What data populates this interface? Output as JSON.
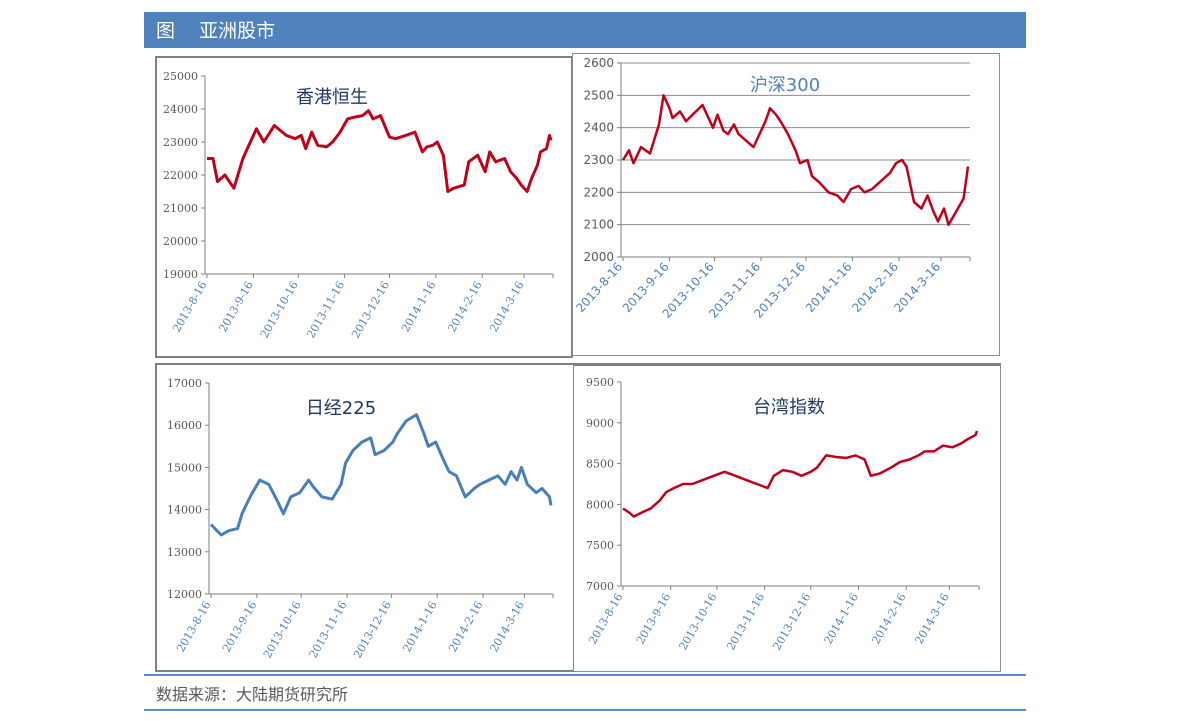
{
  "header": {
    "title": "图    亚洲股市",
    "bg_color": "#4f81bd"
  },
  "footer": {
    "source": "数据来源：大陆期货研究所"
  },
  "chart_data": [
    {
      "id": "hsi",
      "type": "line",
      "title": "香港恒生",
      "line_color": "#c0001a",
      "title_color": "#1f3864",
      "ylim": [
        19000,
        25000
      ],
      "yticks": [
        "19000",
        "20000",
        "21000",
        "22000",
        "23000",
        "24000",
        "25000"
      ],
      "xticks": [
        "2013-8-16",
        "2013-9-16",
        "2013-10-16",
        "2013-11-16",
        "2013-12-16",
        "2014-1-16",
        "2014-2-16",
        "2014-3-16"
      ],
      "x": [
        "2013-8-16",
        "2013-8-20",
        "2013-8-23",
        "2013-8-28",
        "2013-9-3",
        "2013-9-9",
        "2013-9-13",
        "2013-9-18",
        "2013-9-23",
        "2013-9-30",
        "2013-10-8",
        "2013-10-14",
        "2013-10-18",
        "2013-10-21",
        "2013-10-25",
        "2013-10-29",
        "2013-11-4",
        "2013-11-8",
        "2013-11-13",
        "2013-11-18",
        "2013-11-22",
        "2013-11-28",
        "2013-12-2",
        "2013-12-5",
        "2013-12-10",
        "2013-12-16",
        "2013-12-20",
        "2013-12-27",
        "2014-1-2",
        "2014-1-7",
        "2014-1-10",
        "2014-1-14",
        "2014-1-17",
        "2014-1-21",
        "2014-1-24",
        "2014-1-28",
        "2014-2-4",
        "2014-2-7",
        "2014-2-13",
        "2014-2-18",
        "2014-2-21",
        "2014-2-25",
        "2014-3-3",
        "2014-3-7",
        "2014-3-11",
        "2014-3-14",
        "2014-3-18",
        "2014-3-21",
        "2014-3-25",
        "2014-3-27",
        "2014-3-31",
        "2014-4-2",
        "2014-4-3"
      ],
      "values": [
        22500,
        22500,
        21800,
        22000,
        21600,
        22500,
        22900,
        23400,
        23000,
        23500,
        23200,
        23100,
        23200,
        22800,
        23300,
        22900,
        22850,
        23000,
        23300,
        23700,
        23750,
        23800,
        23950,
        23700,
        23800,
        23150,
        23100,
        23200,
        23300,
        22700,
        22850,
        22900,
        23000,
        22600,
        21500,
        21600,
        21700,
        22400,
        22600,
        22100,
        22700,
        22400,
        22500,
        22100,
        21900,
        21700,
        21500,
        21900,
        22300,
        22700,
        22800,
        23200,
        23050
      ]
    },
    {
      "id": "csi300",
      "type": "line",
      "title": "沪深300",
      "line_color": "#c0001a",
      "title_color": "#4f81bd",
      "ylim": [
        2000,
        2600
      ],
      "yticks": [
        "2000",
        "2100",
        "2200",
        "2300",
        "2400",
        "2500",
        "2600"
      ],
      "xticks": [
        "2013-8-16",
        "2013-9-16",
        "2013-10-16",
        "2013-11-16",
        "2013-12-16",
        "2014-1-16",
        "2014-2-16",
        "2014-3-16"
      ],
      "x": [
        "2013-8-16",
        "2013-8-20",
        "2013-8-23",
        "2013-8-28",
        "2013-9-3",
        "2013-9-9",
        "2013-9-12",
        "2013-9-16",
        "2013-9-18",
        "2013-9-23",
        "2013-9-27",
        "2013-10-8",
        "2013-10-11",
        "2013-10-15",
        "2013-10-18",
        "2013-10-22",
        "2013-10-25",
        "2013-10-29",
        "2013-11-1",
        "2013-11-6",
        "2013-11-11",
        "2013-11-15",
        "2013-11-19",
        "2013-11-22",
        "2013-11-26",
        "2013-11-29",
        "2013-12-4",
        "2013-12-9",
        "2013-12-12",
        "2013-12-17",
        "2013-12-20",
        "2013-12-25",
        "2013-12-31",
        "2014-1-6",
        "2014-1-10",
        "2014-1-15",
        "2014-1-20",
        "2014-1-24",
        "2014-1-29",
        "2014-2-10",
        "2014-2-14",
        "2014-2-18",
        "2014-2-21",
        "2014-2-26",
        "2014-3-3",
        "2014-3-7",
        "2014-3-11",
        "2014-3-14",
        "2014-3-18",
        "2014-3-21",
        "2014-3-26",
        "2014-3-31",
        "2014-4-3"
      ],
      "values": [
        2300,
        2330,
        2290,
        2340,
        2320,
        2410,
        2500,
        2460,
        2430,
        2450,
        2420,
        2470,
        2440,
        2400,
        2440,
        2390,
        2380,
        2410,
        2380,
        2360,
        2340,
        2380,
        2420,
        2460,
        2440,
        2420,
        2380,
        2330,
        2290,
        2300,
        2250,
        2230,
        2200,
        2190,
        2170,
        2210,
        2220,
        2200,
        2210,
        2260,
        2290,
        2300,
        2280,
        2170,
        2150,
        2190,
        2140,
        2110,
        2150,
        2100,
        2140,
        2180,
        2280
      ]
    },
    {
      "id": "nikkei",
      "type": "line",
      "title": "日经225",
      "line_color": "#4a7ebb",
      "title_color": "#1f3864",
      "ylim": [
        12000,
        17000
      ],
      "yticks": [
        "12000",
        "13000",
        "14000",
        "15000",
        "16000",
        "17000"
      ],
      "xticks": [
        "2013-8-16",
        "2013-9-16",
        "2013-10-16",
        "2013-11-16",
        "2013-12-16",
        "2014-1-16",
        "2014-2-16",
        "2014-3-16"
      ],
      "x": [
        "2013-8-16",
        "2013-8-20",
        "2013-8-23",
        "2013-8-28",
        "2013-9-3",
        "2013-9-6",
        "2013-9-10",
        "2013-9-13",
        "2013-9-18",
        "2013-9-24",
        "2013-9-30",
        "2013-10-4",
        "2013-10-9",
        "2013-10-15",
        "2013-10-21",
        "2013-10-24",
        "2013-10-30",
        "2013-11-6",
        "2013-11-12",
        "2013-11-15",
        "2013-11-20",
        "2013-11-26",
        "2013-12-2",
        "2013-12-5",
        "2013-12-11",
        "2013-12-17",
        "2013-12-20",
        "2013-12-26",
        "2014-1-2",
        "2014-1-7",
        "2014-1-10",
        "2014-1-15",
        "2014-1-20",
        "2014-1-24",
        "2014-1-29",
        "2014-2-4",
        "2014-2-10",
        "2014-2-14",
        "2014-2-20",
        "2014-2-26",
        "2014-3-3",
        "2014-3-7",
        "2014-3-11",
        "2014-3-14",
        "2014-3-18",
        "2014-3-24",
        "2014-3-28",
        "2014-4-2",
        "2014-4-3"
      ],
      "values": [
        13650,
        13500,
        13400,
        13500,
        13550,
        13900,
        14200,
        14400,
        14700,
        14600,
        14200,
        13900,
        14300,
        14400,
        14700,
        14550,
        14300,
        14250,
        14600,
        15100,
        15400,
        15600,
        15700,
        15300,
        15400,
        15600,
        15800,
        16100,
        16250,
        15800,
        15500,
        15600,
        15200,
        14900,
        14800,
        14300,
        14500,
        14600,
        14700,
        14800,
        14600,
        14900,
        14700,
        15000,
        14600,
        14400,
        14500,
        14300,
        14100
      ]
    },
    {
      "id": "taiex",
      "type": "line",
      "title": "台湾指数",
      "line_color": "#c0001a",
      "title_color": "#1f3864",
      "ylim": [
        7000,
        9500
      ],
      "yticks": [
        "7000",
        "7500",
        "8000",
        "8500",
        "9000",
        "9500"
      ],
      "xticks": [
        "2013-8-16",
        "2013-9-16",
        "2013-10-16",
        "2013-11-16",
        "2013-12-16",
        "2014-1-16",
        "2014-2-16",
        "2014-3-16"
      ],
      "x": [
        "2013-8-16",
        "2013-8-20",
        "2013-8-23",
        "2013-8-28",
        "2013-9-3",
        "2013-9-9",
        "2013-9-13",
        "2013-9-18",
        "2013-9-24",
        "2013-9-30",
        "2013-10-7",
        "2013-10-14",
        "2013-10-21",
        "2013-10-28",
        "2013-11-4",
        "2013-11-11",
        "2013-11-18",
        "2013-11-22",
        "2013-11-28",
        "2013-12-4",
        "2013-12-10",
        "2013-12-16",
        "2013-12-20",
        "2013-12-26",
        "2014-1-2",
        "2014-1-8",
        "2014-1-14",
        "2014-1-20",
        "2014-1-24",
        "2014-1-30",
        "2014-2-6",
        "2014-2-12",
        "2014-2-18",
        "2014-2-24",
        "2014-2-28",
        "2014-3-6",
        "2014-3-12",
        "2014-3-18",
        "2014-3-24",
        "2014-3-28",
        "2014-4-2",
        "2014-4-3"
      ],
      "values": [
        7950,
        7900,
        7850,
        7900,
        7950,
        8050,
        8150,
        8200,
        8250,
        8250,
        8300,
        8350,
        8400,
        8350,
        8300,
        8250,
        8200,
        8350,
        8420,
        8400,
        8350,
        8400,
        8450,
        8600,
        8580,
        8570,
        8600,
        8550,
        8350,
        8380,
        8450,
        8520,
        8550,
        8600,
        8650,
        8650,
        8720,
        8700,
        8750,
        8800,
        8850,
        8900
      ]
    }
  ]
}
